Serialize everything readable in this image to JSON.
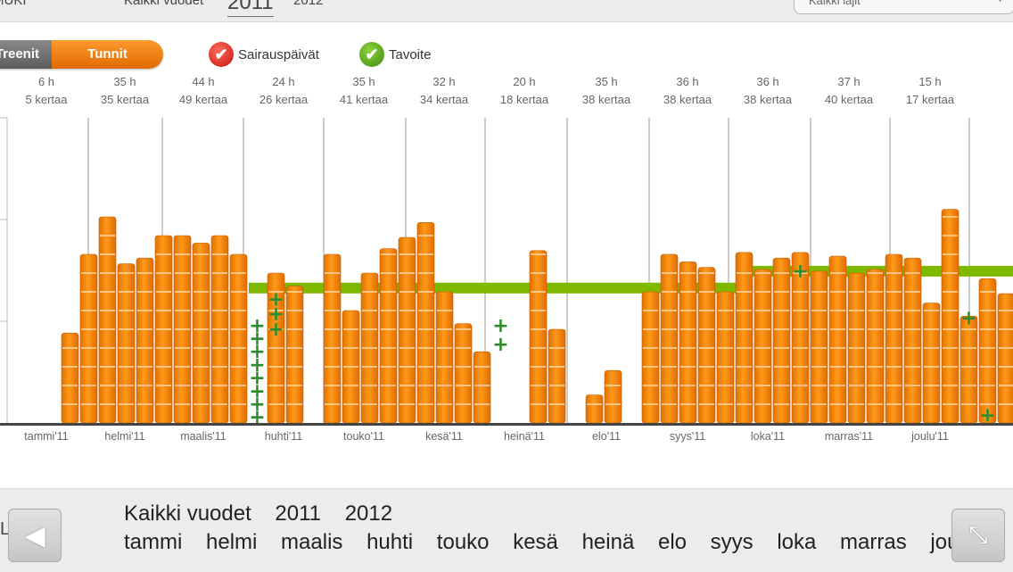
{
  "top_bar": {
    "left_label": "MUKI",
    "all_years": "Kaikki vuodet",
    "year_selected": "2011",
    "year_other": "2012",
    "sport_select": "Kaikki lajit"
  },
  "toggle": {
    "left_label": "Treenit",
    "right_label": "Tunnit",
    "selected": "Tunnit"
  },
  "legend": {
    "sick_days": "Sairauspäivät",
    "goal": "Tavoite"
  },
  "months": [
    {
      "hours": "6 h",
      "times": "5 kertaa",
      "label": "tammi'11"
    },
    {
      "hours": "35 h",
      "times": "35 kertaa",
      "label": "helmi'11"
    },
    {
      "hours": "44 h",
      "times": "49 kertaa",
      "label": "maalis'11"
    },
    {
      "hours": "24 h",
      "times": "26 kertaa",
      "label": "huhti'11"
    },
    {
      "hours": "35 h",
      "times": "41 kertaa",
      "label": "touko'11"
    },
    {
      "hours": "32 h",
      "times": "34 kertaa",
      "label": "kesä'11"
    },
    {
      "hours": "20 h",
      "times": "18 kertaa",
      "label": "heinä'11"
    },
    {
      "hours": "35 h",
      "times": "38 kertaa",
      "label": "elo'11"
    },
    {
      "hours": "36 h",
      "times": "38 kertaa",
      "label": "syys'11"
    },
    {
      "hours": "36 h",
      "times": "38 kertaa",
      "label": "loka'11"
    },
    {
      "hours": "37 h",
      "times": "40 kertaa",
      "label": "marras'11"
    },
    {
      "hours": "15 h",
      "times": "17 kertaa",
      "label": "joulu'11"
    }
  ],
  "chart_data": {
    "type": "bar",
    "weekly_hours": [
      4.8,
      9.0,
      11.0,
      8.5,
      8.8,
      10.0,
      10.0,
      9.6,
      10.0,
      9.0,
      0,
      8.0,
      7.3,
      0,
      9.0,
      6.0,
      8.0,
      9.3,
      9.9,
      10.7,
      7.0,
      5.3,
      3.8,
      0,
      0,
      9.2,
      5.0,
      0,
      1.5,
      2.8,
      0,
      7.0,
      9.0,
      8.6,
      8.3,
      7.0,
      9.1,
      8.2,
      8.8,
      9.1,
      8.1,
      8.9,
      8.0,
      8.2,
      9.0,
      8.8,
      6.4,
      11.4,
      5.7,
      7.7,
      6.9,
      0,
      0,
      0
    ],
    "goal": [
      null,
      null,
      null,
      null,
      null,
      null,
      null,
      null,
      null,
      null,
      7.2,
      7.2,
      7.2,
      7.2,
      7.2,
      7.2,
      7.2,
      7.2,
      7.2,
      7.2,
      7.2,
      7.2,
      7.2,
      7.2,
      7.2,
      7.2,
      7.2,
      7.2,
      7.2,
      7.2,
      7.2,
      7.2,
      7.2,
      7.2,
      7.2,
      7.2,
      8.1,
      8.1,
      8.1,
      8.1,
      8.1,
      8.1,
      8.1,
      8.1,
      8.1,
      8.1,
      8.1,
      8.1,
      8.1,
      8.1,
      8.1,
      8.1,
      8.1,
      8.1
    ],
    "sick_days": [
      {
        "week": 10,
        "level": 0.3
      },
      {
        "week": 10,
        "level": 1.0
      },
      {
        "week": 10,
        "level": 1.7
      },
      {
        "week": 10,
        "level": 2.4
      },
      {
        "week": 10,
        "level": 3.1
      },
      {
        "week": 10,
        "level": 3.8
      },
      {
        "week": 10,
        "level": 4.5
      },
      {
        "week": 10,
        "level": 5.2
      },
      {
        "week": 11,
        "level": 5.0
      },
      {
        "week": 11,
        "level": 5.8
      },
      {
        "week": 11,
        "level": 6.6
      },
      {
        "week": 23,
        "level": 4.2
      },
      {
        "week": 23,
        "level": 5.2
      },
      {
        "week": 39,
        "level": 8.1
      },
      {
        "week": 48,
        "level": 5.6
      },
      {
        "week": 49,
        "level": 0.4
      }
    ]
  },
  "bottom_nav": {
    "prev_label": "Loki",
    "years": [
      "Kaikki vuodet",
      "2011",
      "2012"
    ],
    "months": [
      "tammi",
      "helmi",
      "maalis",
      "huhti",
      "touko",
      "kesä",
      "heinä",
      "elo",
      "syys",
      "loka",
      "marras",
      "joulu"
    ]
  }
}
